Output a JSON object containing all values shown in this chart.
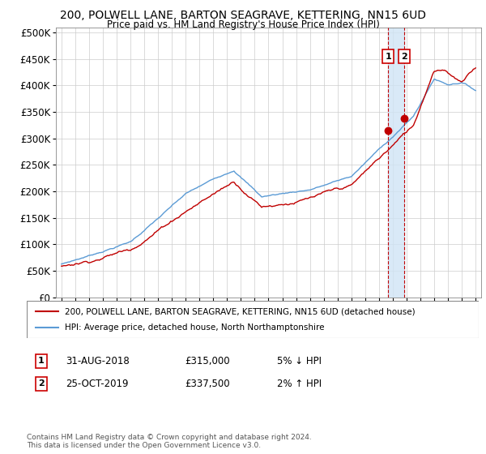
{
  "title": "200, POLWELL LANE, BARTON SEAGRAVE, KETTERING, NN15 6UD",
  "subtitle": "Price paid vs. HM Land Registry's House Price Index (HPI)",
  "ylabel_ticks": [
    "£0",
    "£50K",
    "£100K",
    "£150K",
    "£200K",
    "£250K",
    "£300K",
    "£350K",
    "£400K",
    "£450K",
    "£500K"
  ],
  "ytick_values": [
    0,
    50000,
    100000,
    150000,
    200000,
    250000,
    300000,
    350000,
    400000,
    450000,
    500000
  ],
  "hpi_color": "#5b9bd5",
  "price_color": "#c00000",
  "marker_color": "#c00000",
  "vline_color": "#c00000",
  "shade_color": "#d0e4f5",
  "annotation_box_color": "#cc0000",
  "legend_line1": "200, POLWELL LANE, BARTON SEAGRAVE, KETTERING, NN15 6UD (detached house)",
  "legend_line2": "HPI: Average price, detached house, North Northamptonshire",
  "annotation1_label": "1",
  "annotation1_date": "31-AUG-2018",
  "annotation1_price": "£315,000",
  "annotation1_hpi": "5% ↓ HPI",
  "annotation2_label": "2",
  "annotation2_date": "25-OCT-2019",
  "annotation2_price": "£337,500",
  "annotation2_hpi": "2% ↑ HPI",
  "footer": "Contains HM Land Registry data © Crown copyright and database right 2024.\nThis data is licensed under the Open Government Licence v3.0.",
  "x_start_year": 1995,
  "x_end_year": 2025,
  "t1_year": 2018.664,
  "t2_year": 2019.814,
  "t1_price": 315000,
  "t2_price": 337500
}
